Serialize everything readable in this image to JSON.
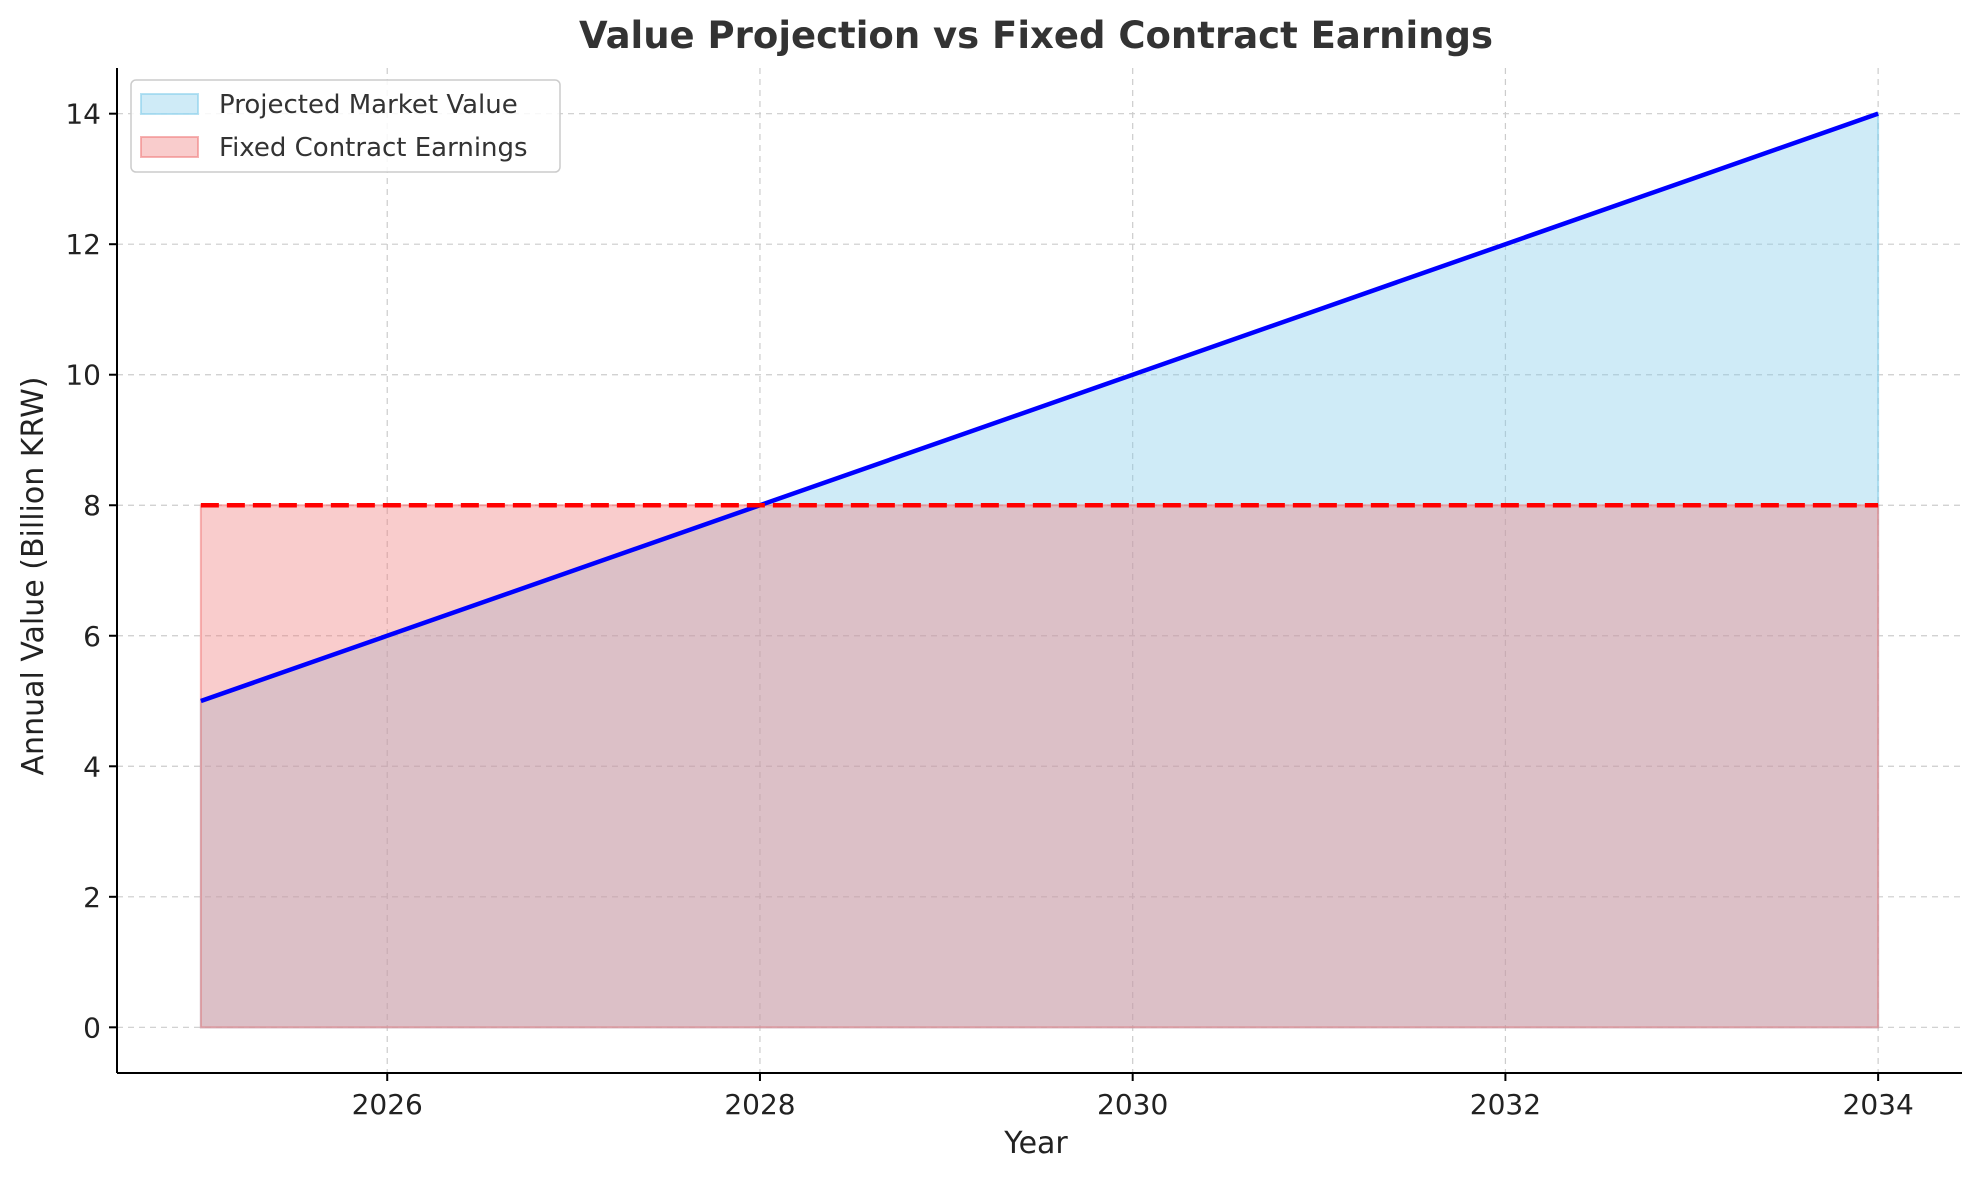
{
  "chart_data": {
    "type": "area",
    "title": "Value Projection vs Fixed Contract Earnings",
    "xlabel": "Year",
    "ylabel": "Annual Value (Billion KRW)",
    "x": [
      2025,
      2026,
      2027,
      2028,
      2029,
      2030,
      2031,
      2032,
      2033,
      2034
    ],
    "xlim": [
      2024.55,
      2034.45
    ],
    "ylim": [
      -0.7,
      14.7
    ],
    "xticks": [
      2026,
      2028,
      2030,
      2032,
      2034
    ],
    "yticks": [
      0,
      2,
      4,
      6,
      8,
      10,
      12,
      14
    ],
    "grid": true,
    "legend_position": "top-left",
    "series": [
      {
        "name": "Projected Market Value",
        "values": [
          5,
          6,
          7,
          8,
          9,
          10,
          11,
          12,
          13,
          14
        ],
        "fill_color": "#87CEEB",
        "line_color": "#0000FF",
        "line_style": "solid"
      },
      {
        "name": "Fixed Contract Earnings",
        "values": [
          8,
          8,
          8,
          8,
          8,
          8,
          8,
          8,
          8,
          8
        ],
        "fill_color": "#F08080",
        "line_color": "#FF0000",
        "line_style": "dashed"
      }
    ]
  }
}
